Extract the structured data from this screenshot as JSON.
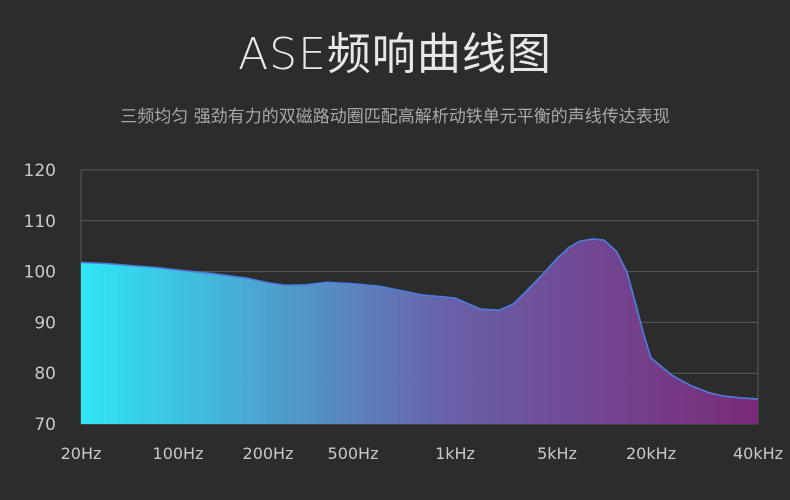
{
  "title": "ASE频响曲线图",
  "subtitle": "三频均匀 强劲有力的双磁路动圈匹配高解析动铁单元平衡的声线传达表现",
  "colors": {
    "background": "#2c2c2c",
    "grid": "#5a5a5a",
    "axis_text": "#c8c8c8",
    "gradient_start": "#2ee6f5",
    "gradient_mid": "#6a5fa8",
    "gradient_end": "#7a2a78",
    "curve_line": "#4a7fe0"
  },
  "chart_data": {
    "type": "area",
    "title": "ASE频响曲线图",
    "subtitle": "三频均匀 强劲有力的双磁路动圈匹配高解析动铁单元平衡的声线传达表现",
    "xlabel": "",
    "ylabel": "",
    "x_scale": "log",
    "xlim": [
      20,
      40000
    ],
    "ylim": [
      70,
      120
    ],
    "grid": true,
    "y_ticks": [
      70,
      80,
      90,
      100,
      110,
      120
    ],
    "x_tick_labels": [
      "20Hz",
      "100Hz",
      "200Hz",
      "500Hz",
      "1kHz",
      "5kHz",
      "20kHz",
      "40kHz"
    ],
    "series": [
      {
        "x": [
          20,
          30,
          45,
          70,
          100,
          130,
          170,
          200,
          240,
          300,
          380,
          500,
          600,
          700,
          800,
          900,
          1000,
          1200,
          1500,
          2000,
          2500,
          3000,
          4000,
          5000,
          6000,
          7000,
          8500,
          10000,
          12000,
          14000,
          16000,
          18000,
          20000,
          23000,
          26000,
          29000,
          32000,
          35000,
          38000,
          40000
        ],
        "y": [
          101.8,
          101.6,
          101.2,
          100.8,
          100.3,
          99.6,
          98.7,
          97.8,
          97.3,
          97.4,
          97.9,
          97.6,
          97.1,
          96.2,
          95.4,
          95.1,
          94.8,
          93.8,
          92.6,
          92.4,
          93.6,
          95.8,
          99.5,
          102.6,
          104.8,
          106.0,
          106.4,
          106.2,
          104.0,
          100.0,
          93.5,
          87.5,
          83.0,
          79.5,
          77.5,
          76.2,
          75.5,
          75.2,
          75.0,
          74.9
        ]
      }
    ]
  }
}
